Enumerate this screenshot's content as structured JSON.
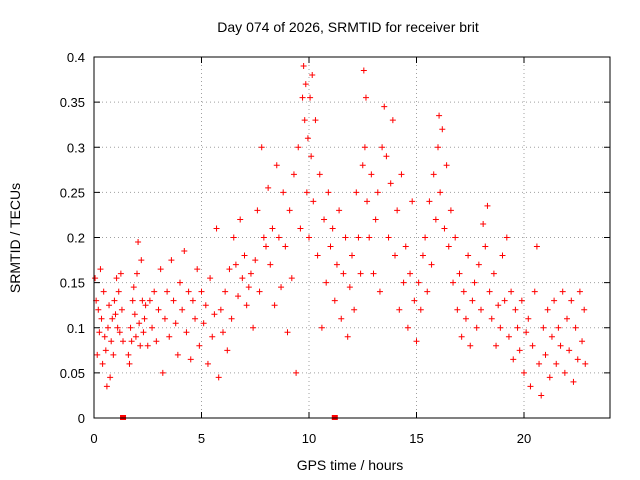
{
  "chart_data": {
    "type": "scatter",
    "title": "Day 074 of 2026, SRMTID for receiver brit",
    "xlabel": "GPS time / hours",
    "ylabel": "SRMTID / TECUs",
    "xlim": [
      0,
      24
    ],
    "ylim": [
      0,
      0.4
    ],
    "x_ticks": [
      0,
      5,
      10,
      15,
      20
    ],
    "x_tick_labels": [
      "0",
      "5",
      "10",
      "15",
      "20"
    ],
    "y_ticks": [
      0,
      0.05,
      0.1,
      0.15,
      0.2,
      0.25,
      0.3,
      0.35,
      0.4
    ],
    "y_tick_labels": [
      "0",
      "0.05",
      "0.1",
      "0.15",
      "0.2",
      "0.25",
      "0.3",
      "0.35",
      "0.4"
    ],
    "grid": true,
    "marker": "plus",
    "color": "#ff0000",
    "series": [
      {
        "name": "SRMTID",
        "points": [
          [
            0.05,
            0.155
          ],
          [
            0.1,
            0.13
          ],
          [
            0.15,
            0.07
          ],
          [
            0.2,
            0.12
          ],
          [
            0.25,
            0.095
          ],
          [
            0.3,
            0.165
          ],
          [
            0.35,
            0.11
          ],
          [
            0.4,
            0.06
          ],
          [
            0.45,
            0.14
          ],
          [
            0.5,
            0.09
          ],
          [
            0.55,
            0.075
          ],
          [
            0.6,
            0.035
          ],
          [
            0.65,
            0.1
          ],
          [
            0.7,
            0.125
          ],
          [
            0.75,
            0.045
          ],
          [
            0.8,
            0.085
          ],
          [
            0.85,
            0.11
          ],
          [
            0.9,
            0.07
          ],
          [
            0.95,
            0.13
          ],
          [
            1.0,
            0.115
          ],
          [
            1.05,
            0.155
          ],
          [
            1.1,
            0.1
          ],
          [
            1.15,
            0.14
          ],
          [
            1.2,
            0.095
          ],
          [
            1.25,
            0.16
          ],
          [
            1.3,
            0.12
          ],
          [
            1.35,
            0.085
          ],
          [
            1.6,
            0.07
          ],
          [
            1.65,
            0.06
          ],
          [
            1.7,
            0.1
          ],
          [
            1.75,
            0.085
          ],
          [
            1.8,
            0.13
          ],
          [
            1.85,
            0.145
          ],
          [
            1.9,
            0.115
          ],
          [
            1.95,
            0.09
          ],
          [
            2.0,
            0.16
          ],
          [
            2.05,
            0.195
          ],
          [
            2.1,
            0.105
          ],
          [
            2.15,
            0.08
          ],
          [
            2.2,
            0.175
          ],
          [
            2.25,
            0.13
          ],
          [
            2.3,
            0.095
          ],
          [
            2.35,
            0.11
          ],
          [
            2.4,
            0.125
          ],
          [
            2.5,
            0.08
          ],
          [
            2.6,
            0.13
          ],
          [
            2.7,
            0.1
          ],
          [
            2.8,
            0.14
          ],
          [
            2.9,
            0.085
          ],
          [
            3.0,
            0.12
          ],
          [
            3.1,
            0.165
          ],
          [
            3.2,
            0.05
          ],
          [
            3.3,
            0.11
          ],
          [
            3.4,
            0.14
          ],
          [
            3.5,
            0.09
          ],
          [
            3.6,
            0.175
          ],
          [
            3.7,
            0.13
          ],
          [
            3.8,
            0.105
          ],
          [
            3.9,
            0.07
          ],
          [
            4.0,
            0.15
          ],
          [
            4.1,
            0.12
          ],
          [
            4.2,
            0.185
          ],
          [
            4.3,
            0.095
          ],
          [
            4.4,
            0.14
          ],
          [
            4.5,
            0.065
          ],
          [
            4.6,
            0.13
          ],
          [
            4.7,
            0.11
          ],
          [
            4.8,
            0.165
          ],
          [
            4.9,
            0.08
          ],
          [
            5.0,
            0.14
          ],
          [
            5.1,
            0.105
          ],
          [
            5.2,
            0.125
          ],
          [
            5.3,
            0.06
          ],
          [
            5.4,
            0.155
          ],
          [
            5.5,
            0.09
          ],
          [
            5.6,
            0.115
          ],
          [
            5.7,
            0.21
          ],
          [
            5.8,
            0.045
          ],
          [
            5.9,
            0.12
          ],
          [
            6.0,
            0.095
          ],
          [
            6.1,
            0.14
          ],
          [
            6.2,
            0.075
          ],
          [
            6.3,
            0.165
          ],
          [
            6.4,
            0.11
          ],
          [
            6.5,
            0.2
          ],
          [
            6.6,
            0.17
          ],
          [
            6.7,
            0.135
          ],
          [
            6.8,
            0.22
          ],
          [
            6.9,
            0.155
          ],
          [
            7.0,
            0.18
          ],
          [
            7.1,
            0.125
          ],
          [
            7.2,
            0.145
          ],
          [
            7.3,
            0.16
          ],
          [
            7.4,
            0.1
          ],
          [
            7.5,
            0.175
          ],
          [
            7.6,
            0.23
          ],
          [
            7.7,
            0.14
          ],
          [
            7.8,
            0.3
          ],
          [
            7.9,
            0.2
          ],
          [
            8.0,
            0.19
          ],
          [
            8.1,
            0.255
          ],
          [
            8.2,
            0.17
          ],
          [
            8.3,
            0.21
          ],
          [
            8.4,
            0.125
          ],
          [
            8.5,
            0.28
          ],
          [
            8.6,
            0.2
          ],
          [
            8.7,
            0.145
          ],
          [
            8.8,
            0.25
          ],
          [
            8.9,
            0.19
          ],
          [
            9.0,
            0.095
          ],
          [
            9.1,
            0.23
          ],
          [
            9.2,
            0.155
          ],
          [
            9.3,
            0.27
          ],
          [
            9.4,
            0.05
          ],
          [
            9.5,
            0.3
          ],
          [
            9.6,
            0.21
          ],
          [
            9.7,
            0.355
          ],
          [
            9.75,
            0.39
          ],
          [
            9.8,
            0.33
          ],
          [
            9.85,
            0.37
          ],
          [
            9.9,
            0.25
          ],
          [
            9.95,
            0.31
          ],
          [
            10.0,
            0.2
          ],
          [
            10.05,
            0.355
          ],
          [
            10.1,
            0.29
          ],
          [
            10.15,
            0.38
          ],
          [
            10.2,
            0.24
          ],
          [
            10.3,
            0.33
          ],
          [
            10.4,
            0.18
          ],
          [
            10.5,
            0.27
          ],
          [
            10.6,
            0.1
          ],
          [
            10.7,
            0.22
          ],
          [
            10.8,
            0.15
          ],
          [
            10.9,
            0.25
          ],
          [
            11.0,
            0.19
          ],
          [
            11.1,
            0.21
          ],
          [
            11.2,
            0.13
          ],
          [
            11.3,
            0.17
          ],
          [
            11.4,
            0.23
          ],
          [
            11.5,
            0.11
          ],
          [
            11.6,
            0.16
          ],
          [
            11.7,
            0.2
          ],
          [
            11.8,
            0.09
          ],
          [
            11.9,
            0.145
          ],
          [
            12.0,
            0.18
          ],
          [
            12.1,
            0.12
          ],
          [
            12.2,
            0.25
          ],
          [
            12.3,
            0.2
          ],
          [
            12.4,
            0.16
          ],
          [
            12.5,
            0.28
          ],
          [
            12.55,
            0.385
          ],
          [
            12.6,
            0.3
          ],
          [
            12.65,
            0.355
          ],
          [
            12.7,
            0.24
          ],
          [
            12.8,
            0.2
          ],
          [
            12.9,
            0.27
          ],
          [
            13.0,
            0.16
          ],
          [
            13.1,
            0.22
          ],
          [
            13.2,
            0.25
          ],
          [
            13.3,
            0.14
          ],
          [
            13.4,
            0.3
          ],
          [
            13.5,
            0.345
          ],
          [
            13.6,
            0.29
          ],
          [
            13.7,
            0.2
          ],
          [
            13.8,
            0.26
          ],
          [
            13.9,
            0.33
          ],
          [
            14.0,
            0.18
          ],
          [
            14.1,
            0.23
          ],
          [
            14.2,
            0.12
          ],
          [
            14.3,
            0.27
          ],
          [
            14.4,
            0.15
          ],
          [
            14.5,
            0.19
          ],
          [
            14.6,
            0.1
          ],
          [
            14.7,
            0.16
          ],
          [
            14.8,
            0.24
          ],
          [
            14.9,
            0.13
          ],
          [
            15.0,
            0.085
          ],
          [
            15.1,
            0.15
          ],
          [
            15.2,
            0.12
          ],
          [
            15.3,
            0.18
          ],
          [
            15.4,
            0.2
          ],
          [
            15.5,
            0.14
          ],
          [
            15.6,
            0.24
          ],
          [
            15.7,
            0.17
          ],
          [
            15.8,
            0.27
          ],
          [
            15.9,
            0.22
          ],
          [
            16.0,
            0.3
          ],
          [
            16.05,
            0.335
          ],
          [
            16.1,
            0.25
          ],
          [
            16.2,
            0.32
          ],
          [
            16.3,
            0.21
          ],
          [
            16.4,
            0.28
          ],
          [
            16.5,
            0.19
          ],
          [
            16.6,
            0.23
          ],
          [
            16.7,
            0.15
          ],
          [
            16.8,
            0.2
          ],
          [
            16.9,
            0.12
          ],
          [
            17.0,
            0.16
          ],
          [
            17.1,
            0.09
          ],
          [
            17.2,
            0.14
          ],
          [
            17.3,
            0.11
          ],
          [
            17.4,
            0.18
          ],
          [
            17.5,
            0.08
          ],
          [
            17.6,
            0.13
          ],
          [
            17.7,
            0.15
          ],
          [
            17.8,
            0.1
          ],
          [
            17.9,
            0.17
          ],
          [
            18.0,
            0.12
          ],
          [
            18.1,
            0.215
          ],
          [
            18.2,
            0.19
          ],
          [
            18.3,
            0.235
          ],
          [
            18.4,
            0.14
          ],
          [
            18.5,
            0.11
          ],
          [
            18.6,
            0.16
          ],
          [
            18.7,
            0.08
          ],
          [
            18.8,
            0.125
          ],
          [
            18.9,
            0.1
          ],
          [
            19.0,
            0.18
          ],
          [
            19.1,
            0.13
          ],
          [
            19.2,
            0.2
          ],
          [
            19.3,
            0.09
          ],
          [
            19.4,
            0.14
          ],
          [
            19.5,
            0.065
          ],
          [
            19.6,
            0.12
          ],
          [
            19.7,
            0.1
          ],
          [
            19.8,
            0.075
          ],
          [
            19.9,
            0.13
          ],
          [
            20.0,
            0.05
          ],
          [
            20.1,
            0.095
          ],
          [
            20.2,
            0.11
          ],
          [
            20.3,
            0.035
          ],
          [
            20.4,
            0.08
          ],
          [
            20.5,
            0.14
          ],
          [
            20.6,
            0.19
          ],
          [
            20.7,
            0.06
          ],
          [
            20.8,
            0.025
          ],
          [
            20.9,
            0.1
          ],
          [
            21.0,
            0.07
          ],
          [
            21.1,
            0.12
          ],
          [
            21.2,
            0.045
          ],
          [
            21.3,
            0.09
          ],
          [
            21.4,
            0.13
          ],
          [
            21.5,
            0.06
          ],
          [
            21.6,
            0.1
          ],
          [
            21.7,
            0.08
          ],
          [
            21.8,
            0.14
          ],
          [
            21.9,
            0.05
          ],
          [
            22.0,
            0.11
          ],
          [
            22.1,
            0.075
          ],
          [
            22.2,
            0.13
          ],
          [
            22.3,
            0.04
          ],
          [
            22.4,
            0.1
          ],
          [
            22.5,
            0.065
          ],
          [
            22.6,
            0.14
          ],
          [
            22.7,
            0.085
          ],
          [
            22.8,
            0.12
          ],
          [
            22.85,
            0.06
          ]
        ]
      }
    ],
    "gap_markers": [
      1.35,
      11.2
    ]
  }
}
